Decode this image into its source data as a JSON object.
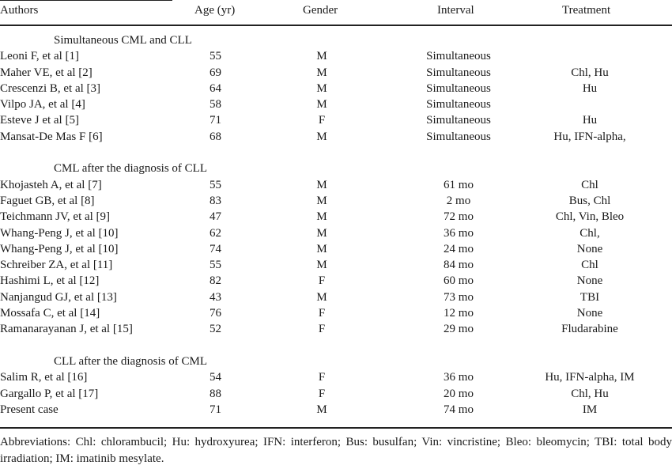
{
  "headers": {
    "authors": "Authors",
    "age": "Age (yr)",
    "gender": "Gender",
    "interval": "Interval",
    "treatment": "Treatment"
  },
  "rows": [
    {
      "type": "section",
      "label": "Simultaneous CML and CLL"
    },
    {
      "type": "data",
      "author": "Leoni F, et al [1]",
      "age": "55",
      "gender": "M",
      "interval": "Simultaneous",
      "treatment": ""
    },
    {
      "type": "data",
      "author": "Maher VE, et al [2]",
      "age": "69",
      "gender": "M",
      "interval": "Simultaneous",
      "treatment": "Chl, Hu"
    },
    {
      "type": "data",
      "author": "Crescenzi B, et al [3]",
      "age": "64",
      "gender": "M",
      "interval": "Simultaneous",
      "treatment": "Hu"
    },
    {
      "type": "data",
      "author": "Vilpo JA, et al [4]",
      "age": "58",
      "gender": "M",
      "interval": "Simultaneous",
      "treatment": ""
    },
    {
      "type": "data",
      "author": "Esteve J et al [5]",
      "age": "71",
      "gender": "F",
      "interval": "Simultaneous",
      "treatment": "Hu"
    },
    {
      "type": "data",
      "author": "Mansat-De Mas F [6]",
      "age": "68",
      "gender": "M",
      "interval": "Simultaneous",
      "treatment": "Hu, IFN-alpha,"
    },
    {
      "type": "blank"
    },
    {
      "type": "section",
      "label": "CML after the diagnosis of CLL"
    },
    {
      "type": "data",
      "author": "Khojasteh A, et al [7]",
      "age": "55",
      "gender": "M",
      "interval": "61 mo",
      "treatment": "Chl"
    },
    {
      "type": "data",
      "author": "Faguet GB, et al [8]",
      "age": "83",
      "gender": "M",
      "interval": "2 mo",
      "treatment": "Bus, Chl"
    },
    {
      "type": "data",
      "author": "Teichmann JV, et al [9]",
      "age": "47",
      "gender": "M",
      "interval": "72 mo",
      "treatment": "Chl, Vin, Bleo"
    },
    {
      "type": "data",
      "author": "Whang-Peng J, et al [10]",
      "age": "62",
      "gender": "M",
      "interval": "36 mo",
      "treatment": "Chl,"
    },
    {
      "type": "data",
      "author": "Whang-Peng J, et al [10]",
      "age": "74",
      "gender": "M",
      "interval": "24 mo",
      "treatment": "None"
    },
    {
      "type": "data",
      "author": "Schreiber ZA, et al [11]",
      "age": "55",
      "gender": "M",
      "interval": "84 mo",
      "treatment": "Chl"
    },
    {
      "type": "data",
      "author": "Hashimi L, et al [12]",
      "age": "82",
      "gender": "F",
      "interval": "60 mo",
      "treatment": "None"
    },
    {
      "type": "data",
      "author": "Nanjangud GJ, et al [13]",
      "age": "43",
      "gender": "M",
      "interval": "73 mo",
      "treatment": "TBI"
    },
    {
      "type": "data",
      "author": "Mossafa C, et al [14]",
      "age": "76",
      "gender": "F",
      "interval": "12 mo",
      "treatment": "None"
    },
    {
      "type": "data",
      "author": "Ramanarayanan J, et al [15]",
      "age": "52",
      "gender": "F",
      "interval": "29 mo",
      "treatment": "Fludarabine"
    },
    {
      "type": "blank"
    },
    {
      "type": "section",
      "label": "CLL after the diagnosis of CML"
    },
    {
      "type": "data",
      "author": "Salim R, et al [16]",
      "age": "54",
      "gender": "F",
      "interval": "36 mo",
      "treatment": "Hu, IFN-alpha, IM"
    },
    {
      "type": "data",
      "author": "Gargallo P, et al [17]",
      "age": "88",
      "gender": "F",
      "interval": "20 mo",
      "treatment": "Chl, Hu"
    },
    {
      "type": "data",
      "author": "Present case",
      "age": "71",
      "gender": "M",
      "interval": "74 mo",
      "treatment": "IM"
    }
  ],
  "footnote": "Abbreviations: Chl: chlorambucil; Hu: hydroxyurea; IFN: interferon; Bus: busulfan; Vin: vincristine; Bleo: bleomycin; TBI: total body irradiation; IM: imatinib mesylate."
}
